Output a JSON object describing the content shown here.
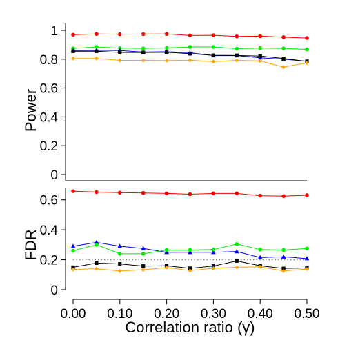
{
  "chart_data": [
    {
      "type": "line",
      "ylabel": "Power",
      "ylim": [
        0,
        1
      ],
      "yticks": [
        0,
        0.2,
        0.4,
        0.6,
        0.8,
        1
      ],
      "ytick_labels": [
        "0",
        "0.2",
        "0.4",
        "0.6",
        "0.8",
        "1"
      ],
      "x": [
        0.0,
        0.05,
        0.1,
        0.15,
        0.2,
        0.25,
        0.3,
        0.35,
        0.4,
        0.45,
        0.5
      ],
      "reference_line": null,
      "series": [
        {
          "color": "#ff0000",
          "marker": "circle",
          "values": [
            0.97,
            0.975,
            0.973,
            0.974,
            0.975,
            0.965,
            0.966,
            0.958,
            0.96,
            0.953,
            0.947
          ]
        },
        {
          "color": "#00ee00",
          "marker": "circle",
          "values": [
            0.875,
            0.885,
            0.877,
            0.875,
            0.878,
            0.885,
            0.885,
            0.873,
            0.877,
            0.875,
            0.868
          ]
        },
        {
          "color": "#0000ff",
          "marker": "triangle",
          "values": [
            0.86,
            0.862,
            0.86,
            0.85,
            0.852,
            0.845,
            0.825,
            0.825,
            0.81,
            0.8,
            0.785
          ]
        },
        {
          "color": "#000000",
          "marker": "square",
          "values": [
            0.855,
            0.855,
            0.847,
            0.846,
            0.848,
            0.838,
            0.827,
            0.826,
            0.822,
            0.805,
            0.785
          ]
        },
        {
          "color": "#ffa500",
          "marker": "diamond",
          "values": [
            0.805,
            0.805,
            0.792,
            0.792,
            0.79,
            0.793,
            0.783,
            0.792,
            0.788,
            0.745,
            0.775
          ]
        }
      ]
    },
    {
      "type": "line",
      "ylabel": "FDR",
      "xlabel": "Correlation ratio (γ)",
      "ylim": [
        0,
        0.7
      ],
      "yticks": [
        0,
        0.2,
        0.4,
        0.6
      ],
      "ytick_labels": [
        "0",
        "0.2",
        "0.4",
        "0.6"
      ],
      "x": [
        0.0,
        0.05,
        0.1,
        0.15,
        0.2,
        0.25,
        0.3,
        0.35,
        0.4,
        0.45,
        0.5
      ],
      "xticks": [
        0.0,
        0.1,
        0.2,
        0.3,
        0.4,
        0.5
      ],
      "xtick_labels": [
        "0.00",
        "0.10",
        "0.20",
        "0.30",
        "0.40",
        "0.50"
      ],
      "reference_line": {
        "y": 0.2,
        "style": "dotted",
        "color": "#888888"
      },
      "series": [
        {
          "color": "#ff0000",
          "marker": "circle",
          "values": [
            0.658,
            0.652,
            0.648,
            0.646,
            0.643,
            0.638,
            0.643,
            0.643,
            0.628,
            0.625,
            0.631
          ]
        },
        {
          "color": "#0000ff",
          "marker": "triangle",
          "values": [
            0.29,
            0.316,
            0.29,
            0.275,
            0.25,
            0.25,
            0.25,
            0.255,
            0.215,
            0.22,
            0.208
          ]
        },
        {
          "color": "#00ee00",
          "marker": "circle",
          "values": [
            0.26,
            0.3,
            0.24,
            0.24,
            0.265,
            0.265,
            0.268,
            0.305,
            0.268,
            0.265,
            0.275
          ]
        },
        {
          "color": "#000000",
          "marker": "square",
          "values": [
            0.15,
            0.178,
            0.172,
            0.158,
            0.16,
            0.143,
            0.158,
            0.192,
            0.16,
            0.142,
            0.145
          ]
        },
        {
          "color": "#ffa500",
          "marker": "diamond",
          "values": [
            0.135,
            0.14,
            0.125,
            0.133,
            0.148,
            0.128,
            0.143,
            0.15,
            0.153,
            0.125,
            0.138
          ]
        }
      ]
    }
  ]
}
